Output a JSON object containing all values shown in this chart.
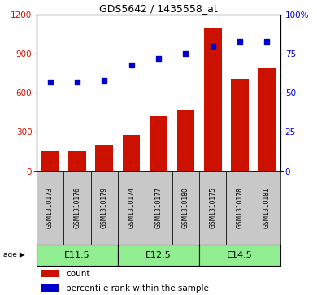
{
  "title": "GDS5642 / 1435558_at",
  "samples": [
    "GSM1310173",
    "GSM1310176",
    "GSM1310179",
    "GSM1310174",
    "GSM1310177",
    "GSM1310180",
    "GSM1310175",
    "GSM1310178",
    "GSM1310181"
  ],
  "counts": [
    155,
    155,
    195,
    280,
    420,
    470,
    1100,
    710,
    790
  ],
  "percentiles": [
    57,
    57,
    58,
    68,
    72,
    75,
    80,
    83,
    83
  ],
  "group_boundaries": [
    [
      0,
      2,
      "E11.5"
    ],
    [
      3,
      5,
      "E12.5"
    ],
    [
      6,
      8,
      "E14.5"
    ]
  ],
  "bar_color": "#CC1100",
  "point_color": "#0000CC",
  "ylim_left": [
    0,
    1200
  ],
  "ylim_right": [
    0,
    100
  ],
  "yticks_left": [
    0,
    300,
    600,
    900,
    1200
  ],
  "yticks_right": [
    0,
    25,
    50,
    75,
    100
  ],
  "ytick_labels_right": [
    "0",
    "25",
    "50",
    "75",
    "100%"
  ],
  "ytick_labels_left": [
    "0",
    "300",
    "600",
    "900",
    "1200"
  ],
  "grid_lines": [
    300,
    600,
    900
  ],
  "label_count": "count",
  "label_percentile": "percentile rank within the sample",
  "age_label": "age",
  "gray_color": "#C8C8C8",
  "green_color": "#90EE90"
}
